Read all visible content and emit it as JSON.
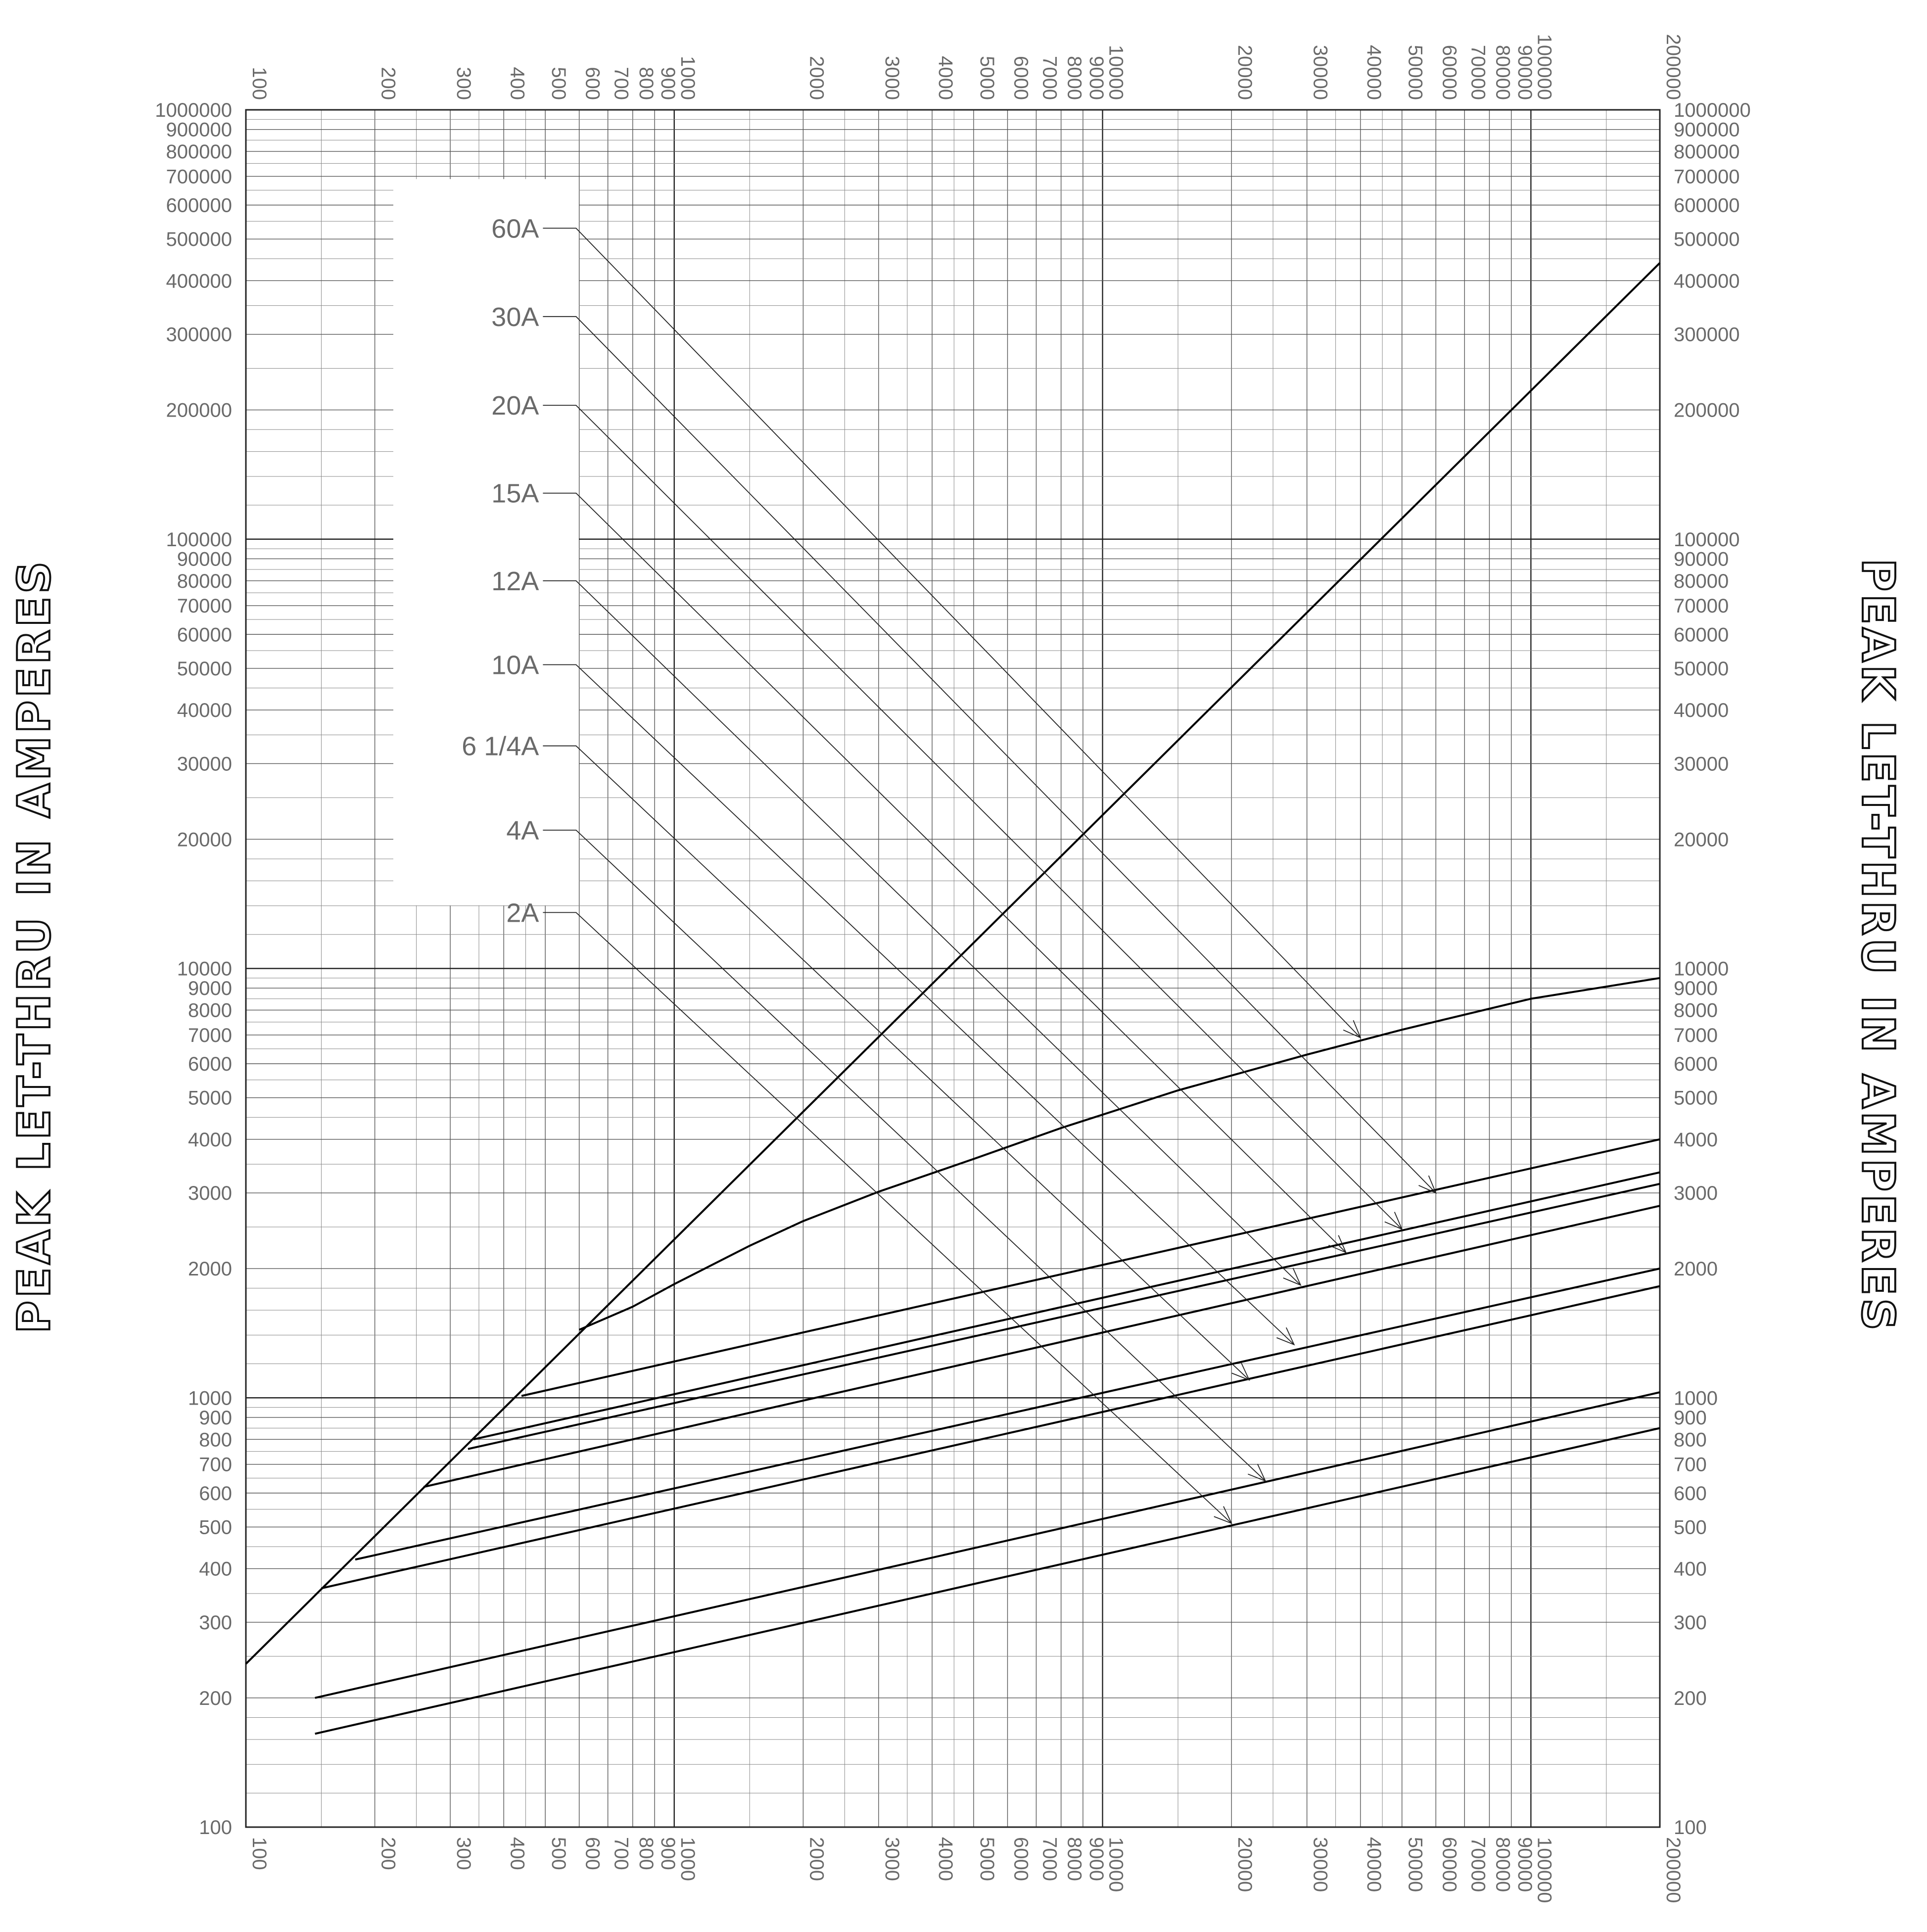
{
  "chart_data": {
    "type": "line",
    "x_scale": "log",
    "y_scale": "log",
    "xlim": [
      100,
      200000
    ],
    "ylim": [
      100,
      1000000
    ],
    "grid": true,
    "axis_titles": {
      "left": "PEAK LET-THRU IN AMPERES",
      "right": "PEAK LET-THRU IN AMPERES"
    },
    "x_tick_labels": [
      "100",
      "200",
      "300",
      "400",
      "500",
      "600",
      "700",
      "800",
      "900",
      "1000",
      "2000",
      "3000",
      "4000",
      "5000",
      "6000",
      "7000",
      "8000",
      "9000",
      "10000",
      "20000",
      "30000",
      "40000",
      "50000",
      "60000",
      "70000",
      "80000",
      "90000",
      "100000",
      "200000"
    ],
    "y_tick_labels_left": [
      "100",
      "200",
      "300",
      "400",
      "500",
      "600",
      "700",
      "800",
      "900",
      "1000",
      "2000",
      "3000",
      "4000",
      "5000",
      "6000",
      "7000",
      "8000",
      "9000",
      "10000",
      "20000",
      "30000",
      "40000",
      "50000",
      "60000",
      "70000",
      "80000",
      "90000",
      "100000",
      "200000",
      "300000",
      "400000",
      "500000",
      "600000",
      "700000",
      "800000",
      "900000",
      "1000000"
    ],
    "y_tick_labels_right": [
      "100",
      "200",
      "300",
      "400",
      "500",
      "600",
      "700",
      "800",
      "900",
      "1000",
      "2000",
      "3000",
      "4000",
      "5000",
      "6000",
      "7000",
      "8000",
      "9000",
      "10000",
      "20000",
      "30000",
      "40000",
      "50000",
      "60000",
      "70000",
      "80000",
      "90000",
      "100000",
      "200000",
      "300000",
      "400000",
      "500000",
      "600000",
      "700000",
      "800000",
      "900000",
      "1000000"
    ],
    "series": [
      {
        "key": "envelope",
        "points": [
          [
            100,
            240
          ],
          [
            200000,
            440000
          ]
        ]
      },
      {
        "key": "60A",
        "points": [
          [
            600,
            1440
          ],
          [
            800,
            1630
          ],
          [
            1000,
            1840
          ],
          [
            1500,
            2260
          ],
          [
            2000,
            2580
          ],
          [
            3000,
            3020
          ],
          [
            5000,
            3600
          ],
          [
            8000,
            4250
          ],
          [
            15000,
            5200
          ],
          [
            30000,
            6300
          ],
          [
            50000,
            7200
          ],
          [
            100000,
            8500
          ],
          [
            200000,
            9500
          ]
        ]
      },
      {
        "key": "30A",
        "points": [
          [
            440,
            1010
          ],
          [
            200000,
            4000
          ]
        ]
      },
      {
        "key": "20A",
        "points": [
          [
            340,
            800
          ],
          [
            200000,
            3350
          ]
        ]
      },
      {
        "key": "15A",
        "points": [
          [
            330,
            760
          ],
          [
            200000,
            3150
          ]
        ]
      },
      {
        "key": "12A",
        "points": [
          [
            260,
            620
          ],
          [
            200000,
            2800
          ]
        ]
      },
      {
        "key": "10A",
        "points": [
          [
            180,
            420
          ],
          [
            200000,
            2000
          ]
        ]
      },
      {
        "key": "6 1/4A",
        "points": [
          [
            150,
            360
          ],
          [
            200000,
            1820
          ]
        ]
      },
      {
        "key": "4A",
        "points": [
          [
            145,
            200
          ],
          [
            200000,
            1030
          ]
        ]
      },
      {
        "key": "2A",
        "points": [
          [
            145,
            165
          ],
          [
            200000,
            850
          ]
        ]
      }
    ],
    "annotations": [
      {
        "text": "60A",
        "leader": [
          [
            590,
            530000
          ],
          [
            40000,
            6900
          ]
        ]
      },
      {
        "text": "30A",
        "leader": [
          [
            590,
            330000
          ],
          [
            60000,
            3000
          ]
        ]
      },
      {
        "text": "20A",
        "leader": [
          [
            590,
            205000
          ],
          [
            50000,
            2470
          ]
        ]
      },
      {
        "text": "15A",
        "leader": [
          [
            590,
            128000
          ],
          [
            37000,
            2180
          ]
        ]
      },
      {
        "text": "12A",
        "leader": [
          [
            590,
            80000
          ],
          [
            29000,
            1830
          ]
        ]
      },
      {
        "text": "10A",
        "leader": [
          [
            590,
            51000
          ],
          [
            28000,
            1330
          ]
        ]
      },
      {
        "text": "6 1/4A",
        "leader": [
          [
            590,
            33000
          ],
          [
            22000,
            1100
          ]
        ]
      },
      {
        "text": "4A",
        "leader": [
          [
            590,
            21000
          ],
          [
            24000,
            640
          ]
        ]
      },
      {
        "text": "2A",
        "leader": [
          [
            590,
            13500
          ],
          [
            20000,
            510
          ]
        ]
      }
    ]
  }
}
